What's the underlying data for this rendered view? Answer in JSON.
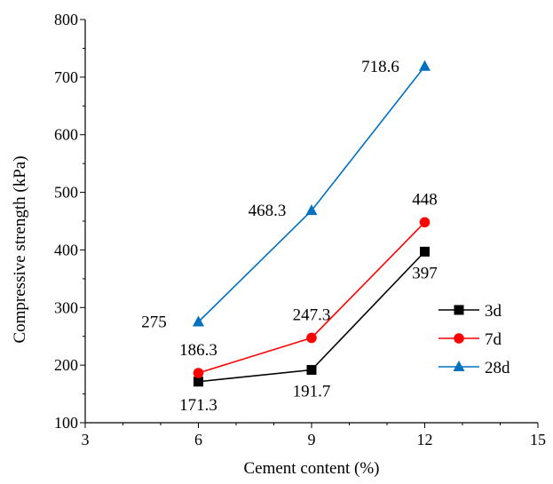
{
  "chart_data": {
    "type": "line",
    "title": "",
    "xlabel": "Cement content (%)",
    "ylabel": "Compressive strength (kPa)",
    "xlim": [
      3,
      15
    ],
    "ylim": [
      100,
      800
    ],
    "x_ticks": [
      3,
      6,
      9,
      12,
      15
    ],
    "y_ticks": [
      100,
      200,
      300,
      400,
      500,
      600,
      700,
      800
    ],
    "grid": false,
    "legend_position": "right",
    "x": [
      6,
      9,
      12
    ],
    "series": [
      {
        "name": "3d",
        "color": "#000000",
        "marker": "square",
        "values": [
          171.3,
          191.7,
          397
        ],
        "labels": [
          "171.3",
          "191.7",
          "397"
        ]
      },
      {
        "name": "7d",
        "color": "#ff0000",
        "marker": "circle",
        "values": [
          186.3,
          247.3,
          448
        ],
        "labels": [
          "186.3",
          "247.3",
          "448"
        ]
      },
      {
        "name": "28d",
        "color": "#0070c0",
        "marker": "triangle",
        "values": [
          275,
          468.3,
          718.6
        ],
        "labels": [
          "275",
          "468.3",
          "718.6"
        ]
      }
    ]
  }
}
